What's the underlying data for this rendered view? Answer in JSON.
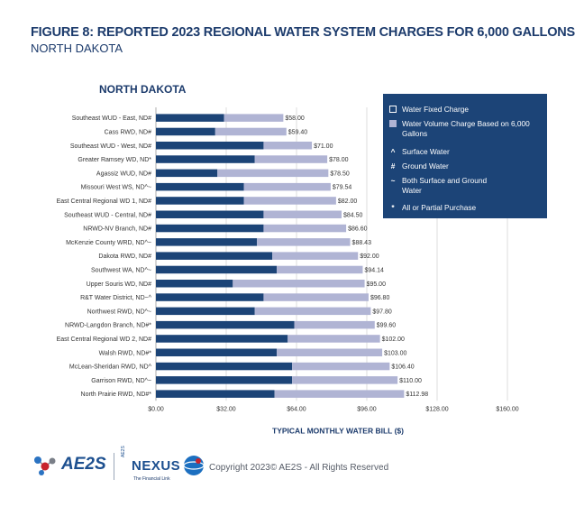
{
  "figure": {
    "title": "FIGURE 8: REPORTED 2023 REGIONAL WATER SYSTEM CHARGES FOR 6,000 GALLONS",
    "subtitle": "NORTH DAKOTA"
  },
  "legend": {
    "items": [
      {
        "label": "Water Fixed Charge",
        "icon": "square-outline"
      },
      {
        "label": "Water Volume Charge Based on 6,000 Gallons",
        "icon": "square-filled"
      },
      {
        "symbol": "^",
        "label": "Surface Water"
      },
      {
        "symbol": "#",
        "label": "Ground Water"
      },
      {
        "symbol": "~",
        "label": "Both Surface and Ground Water"
      },
      {
        "symbol": "*",
        "label": "All or Partial Purchase"
      }
    ]
  },
  "colors": {
    "fixed": "#1c4477",
    "volume": "#b0b4d4",
    "title": "#1c3b6c",
    "grid": "#d6d6d6"
  },
  "chart_data": {
    "type": "bar",
    "orientation": "horizontal",
    "stacked": true,
    "title": "NORTH DAKOTA",
    "xlabel": "TYPICAL MONTHLY WATER BILL ($)",
    "ylabel": "",
    "xlim": [
      0,
      160
    ],
    "xticks": [
      0,
      32,
      64,
      96,
      128,
      160
    ],
    "xtick_labels": [
      "$0.00",
      "$32.00",
      "$64.00",
      "$96.00",
      "$128.00",
      "$160.00"
    ],
    "grid": true,
    "legend_position": "right",
    "categories": [
      "Southeast WUD - East, ND#",
      "Cass RWD, ND#",
      "Southeast WUD - West, ND#",
      "Greater Ramsey WD, ND*",
      "Agassiz WUD, ND#",
      "Missouri West WS, ND^~",
      "East Central Regional WD 1, ND#",
      "Southeast WUD - Central, ND#",
      "NRWD-NV Branch, ND#",
      "McKenzie County WRD, ND^~",
      "Dakota RWD, ND#",
      "Southwest WA, ND^~",
      "Upper Souris WD, ND#",
      "R&T Water District, ND~^",
      "Northwest RWD, ND^~",
      "NRWD-Langdon Branch, ND#*",
      "East Central Regional WD 2, ND#",
      "Walsh RWD, ND#*",
      "McLean-Sheridan RWD, ND^",
      "Garrison RWD, ND^~",
      "North Prairie RWD, ND#*"
    ],
    "series": [
      {
        "name": "Water Fixed Charge",
        "values": [
          31,
          27,
          49,
          45,
          28,
          40,
          40,
          49,
          49,
          46,
          53,
          55,
          35,
          49,
          45,
          63,
          60,
          55,
          62,
          62,
          54
        ]
      },
      {
        "name": "Water Volume Charge Based on 6,000 Gallons",
        "values": [
          27,
          32.4,
          22,
          33,
          50.5,
          39.54,
          42,
          35.5,
          37.6,
          42.43,
          39,
          39.14,
          60,
          47.8,
          52.8,
          36.6,
          42,
          48,
          44.4,
          48,
          58.98
        ]
      }
    ],
    "totals": [
      58.0,
      59.4,
      71.0,
      78.0,
      78.5,
      79.54,
      82.0,
      84.5,
      86.6,
      88.43,
      92.0,
      94.14,
      95.0,
      96.8,
      97.8,
      99.6,
      102.0,
      103.0,
      106.4,
      110.0,
      112.98
    ],
    "total_labels": [
      "$58.00",
      "$59.40",
      "$71.00",
      "$78.00",
      "$78.50",
      "$79.54",
      "$82.00",
      "$84.50",
      "$86.60",
      "$88.43",
      "$92.00",
      "$94.14",
      "$95.00",
      "$96.80",
      "$97.80",
      "$99.60",
      "$102.00",
      "$103.00",
      "$106.40",
      "$110.00",
      "$112.98"
    ]
  },
  "footer": {
    "logo_text": "AE2S",
    "nexus_prefix": "AE2S",
    "nexus_name": "NEXUS",
    "nexus_tagline": "The Financial Link",
    "copyright": "Copyright 2023© AE2S - All Rights Reserved"
  }
}
